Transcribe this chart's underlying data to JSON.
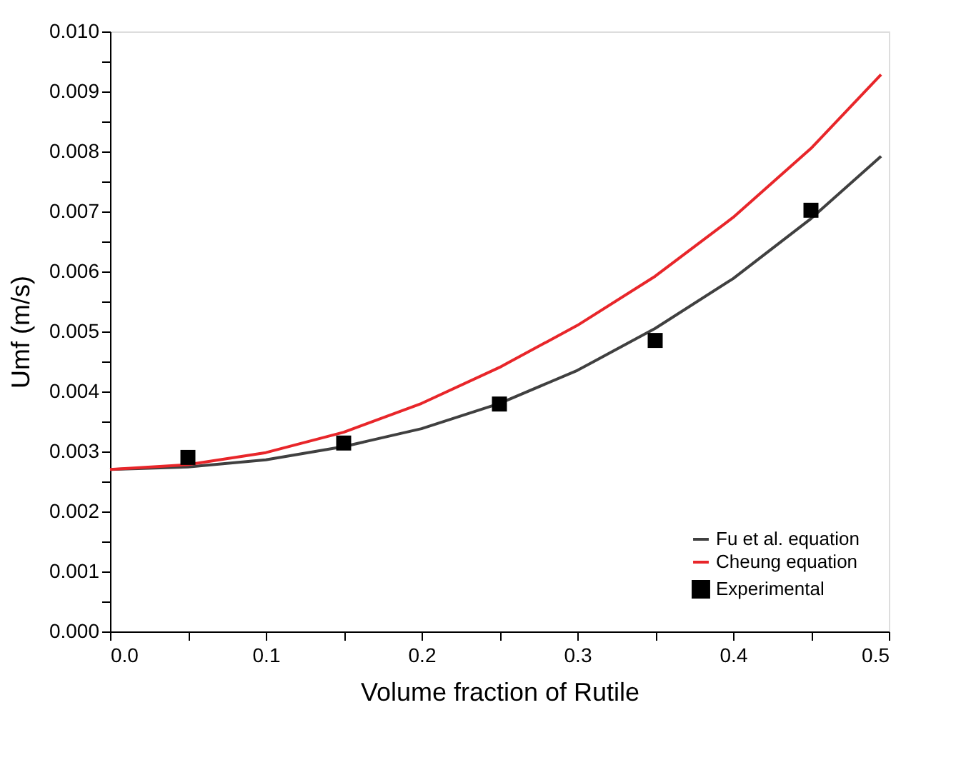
{
  "chart_data": {
    "type": "line",
    "xlabel": "Volume fraction of Rutile",
    "ylabel": "Umf (m/s)",
    "xlim": [
      0,
      0.5
    ],
    "ylim": [
      0,
      0.01
    ],
    "xticks": [
      {
        "value": 0,
        "label": "0.0"
      },
      {
        "value": 0.05,
        "label": null
      },
      0.1,
      {
        "value": 0.15,
        "label": null
      },
      0.2,
      {
        "value": 0.25,
        "label": null
      },
      0.3,
      {
        "value": 0.35,
        "label": null
      },
      0.4,
      {
        "value": 0.45,
        "label": null
      },
      0.5
    ],
    "yticks": [
      {
        "value": 0,
        "label": "0.000"
      },
      {
        "value": 0.0005,
        "label": null
      },
      0.001,
      {
        "value": 0.0015,
        "label": null
      },
      0.002,
      {
        "value": 0.0025,
        "label": null
      },
      0.003,
      {
        "value": 0.0035,
        "label": null
      },
      0.004,
      {
        "value": 0.0045,
        "label": null
      },
      0.005,
      {
        "value": 0.0055,
        "label": null
      },
      0.006,
      {
        "value": 0.0065,
        "label": null
      },
      0.007,
      {
        "value": 0.0075,
        "label": null
      },
      0.008,
      {
        "value": 0.0085,
        "label": null
      },
      0.009,
      {
        "value": 0.0095,
        "label": null
      },
      {
        "value": 0.01,
        "label": "0.010"
      }
    ],
    "legend": "bottom right",
    "series": [
      {
        "name": "Fu et al. equation",
        "color": "#404040",
        "marker": "none",
        "line_style": "solid",
        "x": [
          0,
          0.05,
          0.1,
          0.15,
          0.2,
          0.25,
          0.3,
          0.35,
          0.4,
          0.45,
          0.495
        ],
        "values": [
          0.0027,
          0.00274,
          0.00286,
          0.00308,
          0.00338,
          0.0038,
          0.00435,
          0.00505,
          0.00588,
          0.00688,
          0.00792
        ]
      },
      {
        "name": "Cheung equation",
        "color": "#e8262a",
        "marker": "none",
        "line_style": "solid",
        "x": [
          0,
          0.05,
          0.1,
          0.15,
          0.2,
          0.25,
          0.3,
          0.35,
          0.4,
          0.45,
          0.495
        ],
        "values": [
          0.0027,
          0.00278,
          0.00298,
          0.00332,
          0.0038,
          0.0044,
          0.0051,
          0.00592,
          0.0069,
          0.00805,
          0.00928
        ]
      },
      {
        "name": "Experimental",
        "type": "scatter",
        "color": "#000000",
        "marker": "square",
        "x": [
          0.05,
          0.15,
          0.25,
          0.35,
          0.45
        ],
        "values": [
          0.0029,
          0.00314,
          0.00379,
          0.00485,
          0.00702
        ]
      }
    ]
  }
}
